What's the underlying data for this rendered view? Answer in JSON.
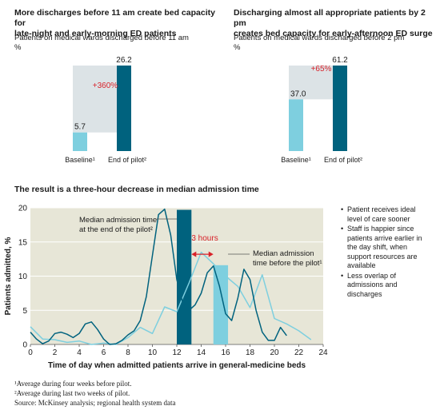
{
  "panel_left": {
    "title_line1": "More discharges before 11 am create bed capacity for",
    "title_line2": "late-night and early-morning ED patients",
    "subtitle": "Patients on medical wards discharged before 11 am",
    "unit": "%"
  },
  "panel_right": {
    "title_line1": "Discharging almost all appropriate patients by 2 pm",
    "title_line2": "creates bed capacity for early-afternoon ED surge",
    "subtitle": "Patients on medical wards discharged before 2 pm",
    "unit": "%"
  },
  "main_title": "The result is a three-hour decrease in median admission time",
  "bullets": [
    "Patient receives ideal level of care sooner",
    "Staff is happier since patients arrive earlier in the day shift, when support resources are available",
    "Less overlap of admissions and discharges"
  ],
  "footnotes": [
    "¹Average during four weeks before pilot.",
    "²Average during last two weeks of pilot.",
    "Source: McKinsey analysis; regional health system data"
  ],
  "colors": {
    "baseline": "#7ecfdf",
    "pilot": "#00627e",
    "increase_area": "#dce3e6",
    "plot_bg": "#e7e6d7",
    "annotation_red": "#d8222a"
  },
  "chart_data": [
    {
      "type": "bar",
      "categories": [
        "Baseline¹",
        "End of pilot²"
      ],
      "values": [
        5.7,
        26.2
      ],
      "value_labels": [
        "5.7",
        "26.2"
      ],
      "change_label": "+360%",
      "title": "Patients on medical wards discharged before 11 am",
      "ylabel": "%"
    },
    {
      "type": "bar",
      "categories": [
        "Baseline¹",
        "End of pilot²"
      ],
      "values": [
        37.0,
        61.2
      ],
      "value_labels": [
        "37.0",
        "61.2"
      ],
      "change_label": "+65%",
      "title": "Patients on medical wards discharged before 2 pm",
      "ylabel": "%"
    },
    {
      "type": "line",
      "title": "The result is a three-hour decrease in median admission time",
      "xlabel": "Time of day when admitted patients arrive in general-medicine beds",
      "ylabel": "Patients admitted, %",
      "xlim": [
        0,
        24
      ],
      "ylim": [
        0,
        20
      ],
      "x_ticks": [
        0,
        2,
        4,
        6,
        8,
        10,
        12,
        14,
        16,
        18,
        20,
        22,
        24
      ],
      "y_ticks": [
        0,
        5,
        10,
        15,
        20
      ],
      "series": [
        {
          "name": "End of pilot",
          "x": [
            0,
            0.5,
            1,
            1.5,
            2,
            2.5,
            3,
            3.5,
            4,
            4.5,
            5,
            5.5,
            6,
            6.5,
            7,
            7.5,
            8,
            8.5,
            9,
            9.5,
            10,
            10.5,
            11,
            11.5,
            12,
            12.5,
            13,
            13.5,
            14,
            14.5,
            15,
            15.5,
            16,
            16.5,
            17,
            17.5,
            18,
            18.5,
            19,
            19.5,
            20,
            20.5,
            21
          ],
          "y": [
            1.8,
            0.8,
            0.1,
            0.5,
            1.6,
            1.8,
            1.5,
            1.0,
            1.6,
            3.0,
            3.3,
            2.2,
            0.8,
            0.0,
            0.1,
            0.6,
            1.4,
            2.0,
            3.5,
            7.0,
            13.0,
            19.0,
            19.8,
            16.0,
            9.5,
            6.0,
            5.0,
            5.8,
            7.5,
            10.5,
            11.5,
            8.5,
            4.5,
            3.5,
            6.8,
            11.0,
            9.5,
            5.0,
            1.8,
            0.6,
            0.6,
            2.5,
            1.3
          ]
        },
        {
          "name": "Before pilot",
          "x": [
            0,
            1,
            2,
            3,
            4,
            5,
            6,
            7,
            8,
            9,
            10,
            11,
            12,
            13,
            14,
            15,
            16,
            17,
            18,
            19,
            20,
            21,
            22,
            23
          ],
          "y": [
            2.6,
            0.8,
            0.7,
            0.3,
            0.5,
            0.0,
            0.2,
            0.0,
            1.0,
            2.5,
            1.6,
            5.5,
            4.8,
            9.0,
            13.5,
            11.8,
            10.0,
            8.5,
            5.4,
            10.2,
            3.8,
            3.0,
            2.0,
            0.7
          ]
        }
      ],
      "bars": [
        {
          "label": "Median admission time at the end of the pilot²",
          "x_start": 12.0,
          "x_end": 13.2,
          "height": 19.7
        },
        {
          "label": "Median admission time before the pilot¹",
          "x_start": 15.0,
          "x_end": 16.2,
          "height": 11.6
        }
      ],
      "annotation": "3 hours"
    }
  ]
}
